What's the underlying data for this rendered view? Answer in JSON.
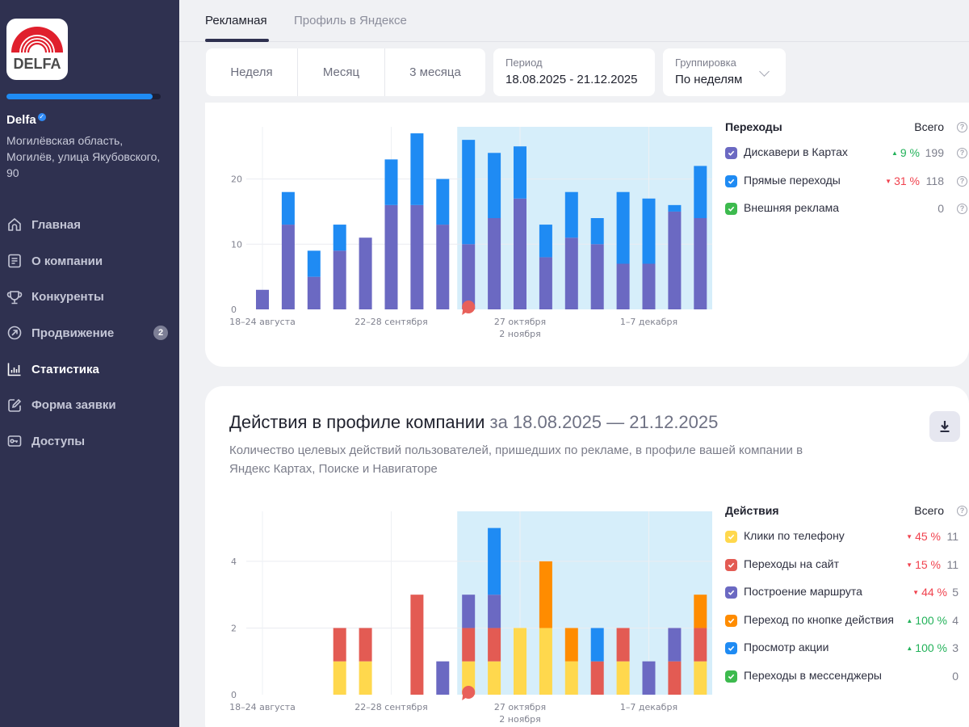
{
  "sidebar": {
    "logo_text": "DELFA",
    "profile_progress_pct": 95,
    "company_name": "Delfa",
    "company_address": "Могилёвская область, Могилёв, улица Якубовского, 90",
    "items": [
      {
        "label": "Главная",
        "icon": "home-icon"
      },
      {
        "label": "О компании",
        "icon": "document-icon"
      },
      {
        "label": "Конкуренты",
        "icon": "trophy-icon"
      },
      {
        "label": "Продвижение",
        "icon": "arrow-up-right-icon",
        "badge": "2"
      },
      {
        "label": "Статистика",
        "icon": "bar-chart-icon",
        "active": true
      },
      {
        "label": "Форма заявки",
        "icon": "edit-icon"
      },
      {
        "label": "Доступы",
        "icon": "key-icon"
      }
    ]
  },
  "tabs": [
    {
      "label": "Рекламная",
      "active": true
    },
    {
      "label": "Профиль в Яндексе",
      "active": false
    }
  ],
  "filters": {
    "periods": [
      "Неделя",
      "Месяц",
      "3 месяца"
    ],
    "period_label": "Период",
    "period_value": "18.08.2025 - 21.12.2025",
    "grouping_label": "Группировка",
    "grouping_value": "По неделям"
  },
  "card1": {
    "legend": {
      "title": "Переходы",
      "total_label": "Всего",
      "rows": [
        {
          "label": "Дискавери в Картах",
          "color": "#6b69c2",
          "delta": "9 %",
          "delta_dir": "up",
          "value": "199",
          "help": true
        },
        {
          "label": "Прямые переходы",
          "color": "#1f8bf3",
          "delta": "31 %",
          "delta_dir": "down",
          "value": "118",
          "help": true
        },
        {
          "label": "Внешняя реклама",
          "color": "#3dba4e",
          "delta": "",
          "delta_dir": "",
          "value": "0",
          "help": true
        }
      ]
    }
  },
  "card2": {
    "title": "Действия в профиле компании",
    "title_range": "за 18.08.2025 — 21.12.2025",
    "description": "Количество целевых действий пользователей, пришедших по рекламе, в профиле вашей компании в Яндекс Картах, Поиске и Навигаторе",
    "download_icon": "download-icon",
    "legend": {
      "title": "Действия",
      "total_label": "Всего",
      "rows": [
        {
          "label": "Клики по телефону",
          "color": "#ffd84d",
          "delta": "45 %",
          "delta_dir": "down",
          "value": "11"
        },
        {
          "label": "Переходы на сайт",
          "color": "#e35b53",
          "delta": "15 %",
          "delta_dir": "down",
          "value": "11"
        },
        {
          "label": "Построение маршрута",
          "color": "#6b69c2",
          "delta": "44 %",
          "delta_dir": "down",
          "value": "5"
        },
        {
          "label": "Переход по кнопке действия",
          "color": "#ff8c00",
          "delta": "100 %",
          "delta_dir": "up",
          "value": "4"
        },
        {
          "label": "Просмотр акции",
          "color": "#1f8bf3",
          "delta": "100 %",
          "delta_dir": "up",
          "value": "3"
        },
        {
          "label": "Переходы в мессенджеры",
          "color": "#3dba4e",
          "delta": "",
          "delta_dir": "",
          "value": "0"
        }
      ]
    }
  },
  "chart_data": [
    {
      "type": "bar",
      "stacked": true,
      "title": "Переходы",
      "xlabel": "",
      "ylabel": "",
      "ylim": [
        0,
        28
      ],
      "yticks": [
        0,
        10,
        20
      ],
      "grid": true,
      "legend_position": "right",
      "x_tick_labels": [
        {
          "index": 0,
          "label": "18–24 августа"
        },
        {
          "index": 5,
          "label": "22–28 сентября"
        },
        {
          "index": 10,
          "label": "27 октября\n2 ноября"
        },
        {
          "index": 15,
          "label": "1–7 декабря"
        }
      ],
      "highlight_from_index": 8,
      "marker_index": 8,
      "categories": [
        "w1",
        "w2",
        "w3",
        "w4",
        "w5",
        "w6",
        "w7",
        "w8",
        "w9",
        "w10",
        "w11",
        "w12",
        "w13",
        "w14",
        "w15",
        "w16",
        "w17",
        "w18"
      ],
      "series": [
        {
          "name": "Дискавери в Картах",
          "color": "#6b69c2",
          "values": [
            3,
            13,
            5,
            9,
            11,
            16,
            16,
            13,
            10,
            14,
            17,
            8,
            11,
            10,
            7,
            7,
            15,
            14
          ]
        },
        {
          "name": "Прямые переходы",
          "color": "#1f8bf3",
          "values": [
            0,
            5,
            4,
            4,
            0,
            7,
            11,
            7,
            16,
            10,
            8,
            5,
            7,
            4,
            11,
            10,
            1,
            8
          ]
        },
        {
          "name": "Внешняя реклама",
          "color": "#3dba4e",
          "values": [
            0,
            0,
            0,
            0,
            0,
            0,
            0,
            0,
            0,
            0,
            0,
            0,
            0,
            0,
            0,
            0,
            0,
            0
          ]
        }
      ]
    },
    {
      "type": "bar",
      "stacked": true,
      "title": "Действия в профиле компании",
      "xlabel": "",
      "ylabel": "",
      "ylim": [
        0,
        5.5
      ],
      "yticks": [
        0,
        2,
        4
      ],
      "grid": true,
      "legend_position": "right",
      "x_tick_labels": [
        {
          "index": 0,
          "label": "18–24 августа"
        },
        {
          "index": 5,
          "label": "22–28 сентября"
        },
        {
          "index": 10,
          "label": "27 октября\n2 ноября"
        },
        {
          "index": 15,
          "label": "1–7 декабря"
        }
      ],
      "highlight_from_index": 8,
      "marker_index": 8,
      "categories": [
        "w1",
        "w2",
        "w3",
        "w4",
        "w5",
        "w6",
        "w7",
        "w8",
        "w9",
        "w10",
        "w11",
        "w12",
        "w13",
        "w14",
        "w15",
        "w16",
        "w17",
        "w18"
      ],
      "series": [
        {
          "name": "Клики по телефону",
          "color": "#ffd84d",
          "values": [
            0,
            0,
            0,
            1,
            1,
            0,
            0,
            0,
            1,
            1,
            2,
            2,
            1,
            0,
            1,
            0,
            0,
            1
          ]
        },
        {
          "name": "Переходы на сайт",
          "color": "#e35b53",
          "values": [
            0,
            0,
            0,
            1,
            1,
            0,
            3,
            0,
            1,
            1,
            0,
            0,
            0,
            1,
            1,
            0,
            1,
            1
          ]
        },
        {
          "name": "Построение маршрута",
          "color": "#6b69c2",
          "values": [
            0,
            0,
            0,
            0,
            0,
            0,
            0,
            1,
            1,
            1,
            0,
            0,
            0,
            0,
            0,
            1,
            1,
            0
          ]
        },
        {
          "name": "Переход по кнопке действия",
          "color": "#ff8c00",
          "values": [
            0,
            0,
            0,
            0,
            0,
            0,
            0,
            0,
            0,
            0,
            0,
            2,
            1,
            0,
            0,
            0,
            0,
            1
          ]
        },
        {
          "name": "Просмотр акции",
          "color": "#1f8bf3",
          "values": [
            0,
            0,
            0,
            0,
            0,
            0,
            0,
            0,
            0,
            2,
            0,
            0,
            0,
            1,
            0,
            0,
            0,
            0
          ]
        },
        {
          "name": "Переходы в мессенджеры",
          "color": "#3dba4e",
          "values": [
            0,
            0,
            0,
            0,
            0,
            0,
            0,
            0,
            0,
            0,
            0,
            0,
            0,
            0,
            0,
            0,
            0,
            0
          ]
        }
      ]
    }
  ]
}
